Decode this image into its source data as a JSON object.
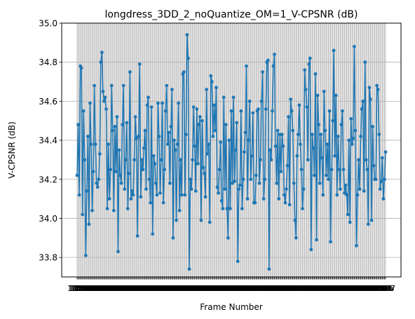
{
  "chart_data": {
    "type": "line",
    "title": "longdress_3DD_2_noQuantize_OM=1_V-CPSNR (dB)",
    "xlabel": "Frame Number",
    "ylabel": "V-CPSNR (dB)",
    "xlim": [
      1051,
      1350
    ],
    "ylim": [
      33.7,
      35.0
    ],
    "yticks": [
      33.8,
      34.0,
      34.2,
      34.4,
      34.6,
      34.8,
      35.0
    ],
    "ytick_labels": [
      "33.8",
      "34.0",
      "34.2",
      "34.4",
      "34.6",
      "34.8",
      "35.0"
    ],
    "grid": true,
    "marker": "circle",
    "color": "#1f77b4",
    "x_start": 1051,
    "x_step": 1,
    "y": [
      34.22,
      34.48,
      34.12,
      34.78,
      34.77,
      34.02,
      34.55,
      34.3,
      33.81,
      34.14,
      34.42,
      33.97,
      34.59,
      34.38,
      34.04,
      34.24,
      34.68,
      34.38,
      34.18,
      34.16,
      34.2,
      34.33,
      34.8,
      34.85,
      34.65,
      34.6,
      34.62,
      34.56,
      34.05,
      34.38,
      34.1,
      34.25,
      34.68,
      34.45,
      34.04,
      34.47,
      34.24,
      34.52,
      33.83,
      34.35,
      34.22,
      34.18,
      34.48,
      34.68,
      34.15,
      34.3,
      34.49,
      34.05,
      34.23,
      34.75,
      34.1,
      34.14,
      34.12,
      34.3,
      34.52,
      34.41,
      33.91,
      34.42,
      34.79,
      34.11,
      34.3,
      34.25,
      34.36,
      34.45,
      34.15,
      34.58,
      34.62,
      34.2,
      34.08,
      34.57,
      33.92,
      34.32,
      34.28,
      34.18,
      34.12,
      34.59,
      34.42,
      34.13,
      34.3,
      34.59,
      34.08,
      34.25,
      34.55,
      34.68,
      34.38,
      34.44,
      34.18,
      34.47,
      34.66,
      33.9,
      34.4,
      34.35,
      33.99,
      34.38,
      34.59,
      34.04,
      34.3,
      34.12,
      34.74,
      34.75,
      34.12,
      34.43,
      34.94,
      34.82,
      33.74,
      34.2,
      34.15,
      34.3,
      34.57,
      34.37,
      34.14,
      34.56,
      34.28,
      34.48,
      34.52,
      33.99,
      34.5,
      34.26,
      34.23,
      34.11,
      34.66,
      34.33,
      34.38,
      33.98,
      34.73,
      34.7,
      34.42,
      34.58,
      34.45,
      34.67,
      34.16,
      34.13,
      34.25,
      34.39,
      34.09,
      34.05,
      34.62,
      34.15,
      34.48,
      34.05,
      33.9,
      34.4,
      34.05,
      34.55,
      34.18,
      34.62,
      34.19,
      34.35,
      34.49,
      33.78,
      34.15,
      34.17,
      34.55,
      34.05,
      34.2,
      34.34,
      34.44,
      34.78,
      34.1,
      34.4,
      34.6,
      34.2,
      34.32,
      34.54,
      34.08,
      34.08,
      34.22,
      34.55,
      34.56,
      34.18,
      34.3,
      34.6,
      34.75,
      34.1,
      34.2,
      34.56,
      34.8,
      34.81,
      33.74,
      34.35,
      34.3,
      34.55,
      34.78,
      34.84,
      34.37,
      34.18,
      34.45,
      34.1,
      34.43,
      34.24,
      34.43,
      34.37,
      34.12,
      34.08,
      34.15,
      34.27,
      34.52,
      34.07,
      34.61,
      34.55,
      34.45,
      34.18,
      33.99,
      33.9,
      34.32,
      34.43,
      34.58,
      34.38,
      34.25,
      34.05,
      34.15,
      34.76,
      34.66,
      34.57,
      34.3,
      34.79,
      34.82,
      33.84,
      34.43,
      34.36,
      34.22,
      34.74,
      33.89,
      34.63,
      34.48,
      34.18,
      34.43,
      34.31,
      34.12,
      34.65,
      34.45,
      34.22,
      34.38,
      34.2,
      34.55,
      33.88,
      34.25,
      34.5,
      34.86,
      34.32,
      34.63,
      34.12,
      34.42,
      34.25,
      34.15,
      34.48,
      34.55,
      34.25,
      34.13,
      34.17,
      34.12,
      34.02,
      34.4,
      33.98,
      34.51,
      34.38,
      34.41,
      34.88,
      34.45,
      33.86,
      34.12,
      34.3,
      34.15,
      34.42,
      34.56,
      34.6,
      34.14,
      34.8,
      34.3,
      34.25,
      33.97,
      34.67,
      34.61,
      33.99,
      34.47,
      34.27,
      34.2,
      34.2,
      34.68,
      34.66,
      34.43,
      34.15,
      34.19,
      34.31,
      34.1,
      34.2,
      34.34
    ]
  }
}
